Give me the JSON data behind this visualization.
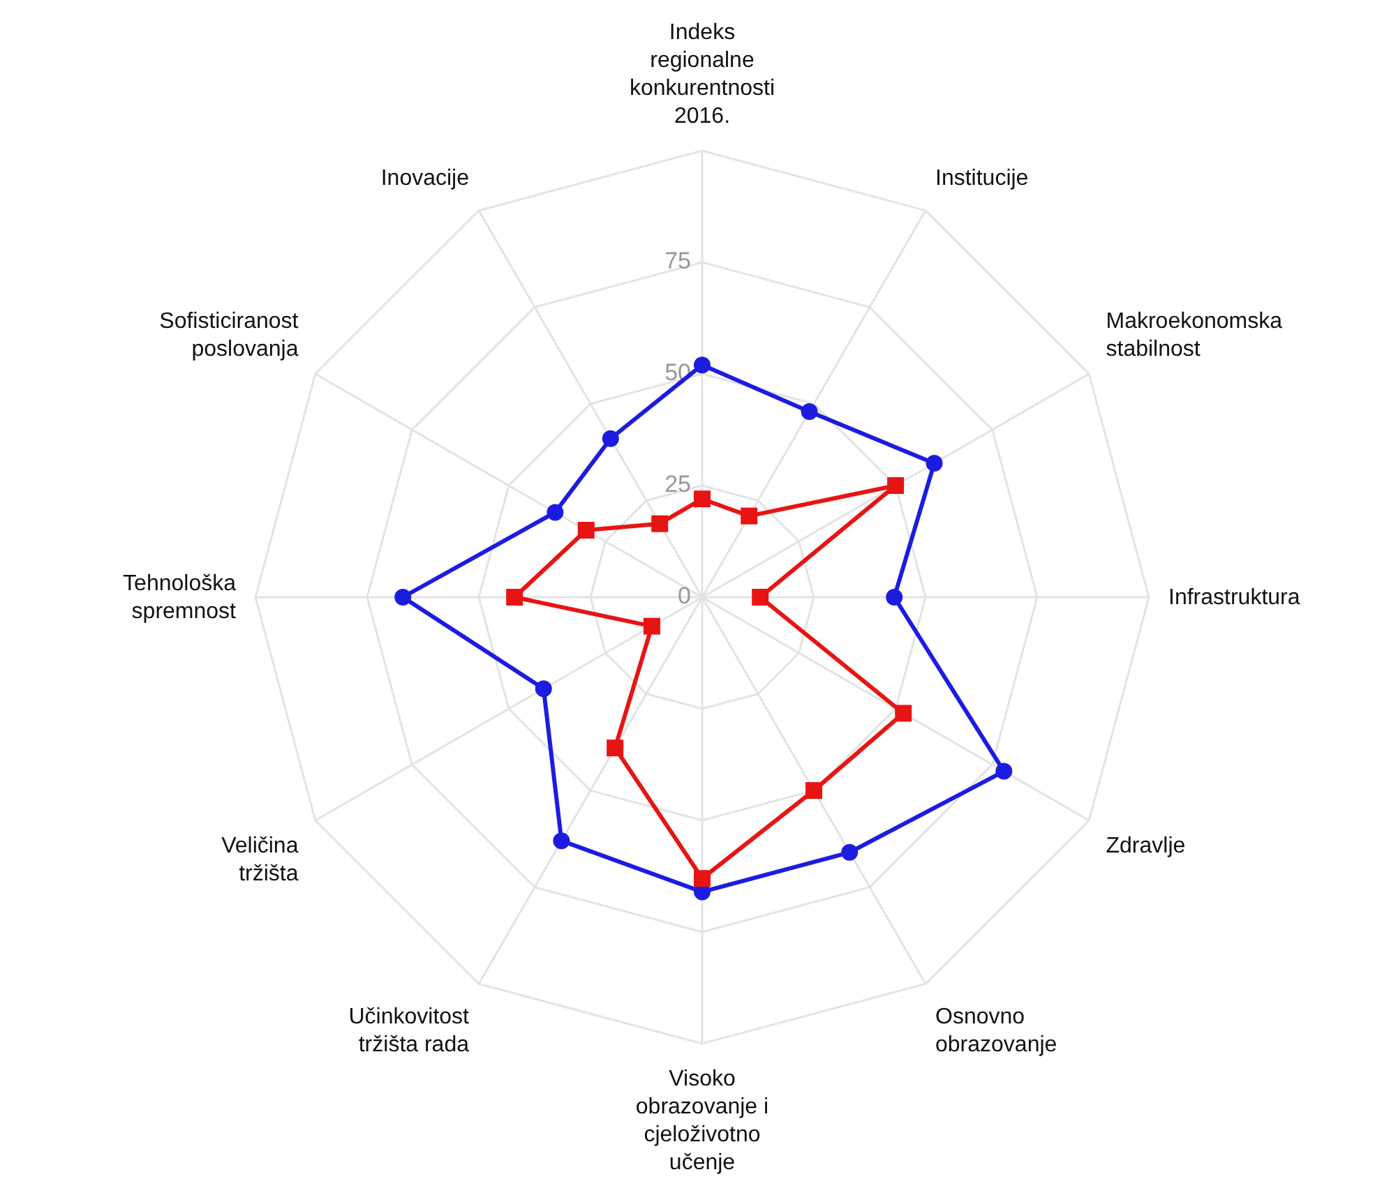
{
  "chart_data": {
    "type": "radar",
    "categories": [
      "Indeks regionalne konkurentnosti 2016.",
      "Institucije",
      "Makroekonomska stabilnost",
      "Infrastruktura",
      "Zdravlje",
      "Osnovno obrazovanje",
      "Visoko obrazovanje i cjeloživotno učenje",
      "Učinkovitost tržišta rada",
      "Veličina tržišta",
      "Tehnološka spremnost",
      "Sofisticiranost poslovanja",
      "Inovacije"
    ],
    "series": [
      {
        "color": "#1c1ce0",
        "marker": "circle",
        "values": [
          52,
          48,
          60,
          43,
          78,
          66,
          66,
          63,
          41,
          67,
          38,
          41
        ]
      },
      {
        "color": "#e81414",
        "marker": "square",
        "values": [
          22,
          21,
          50,
          13,
          52,
          50,
          63,
          39,
          13,
          42,
          30,
          19
        ]
      }
    ],
    "ylim": [
      0,
      100
    ],
    "yticks": [
      0,
      25,
      50,
      75
    ],
    "grid": true
  }
}
